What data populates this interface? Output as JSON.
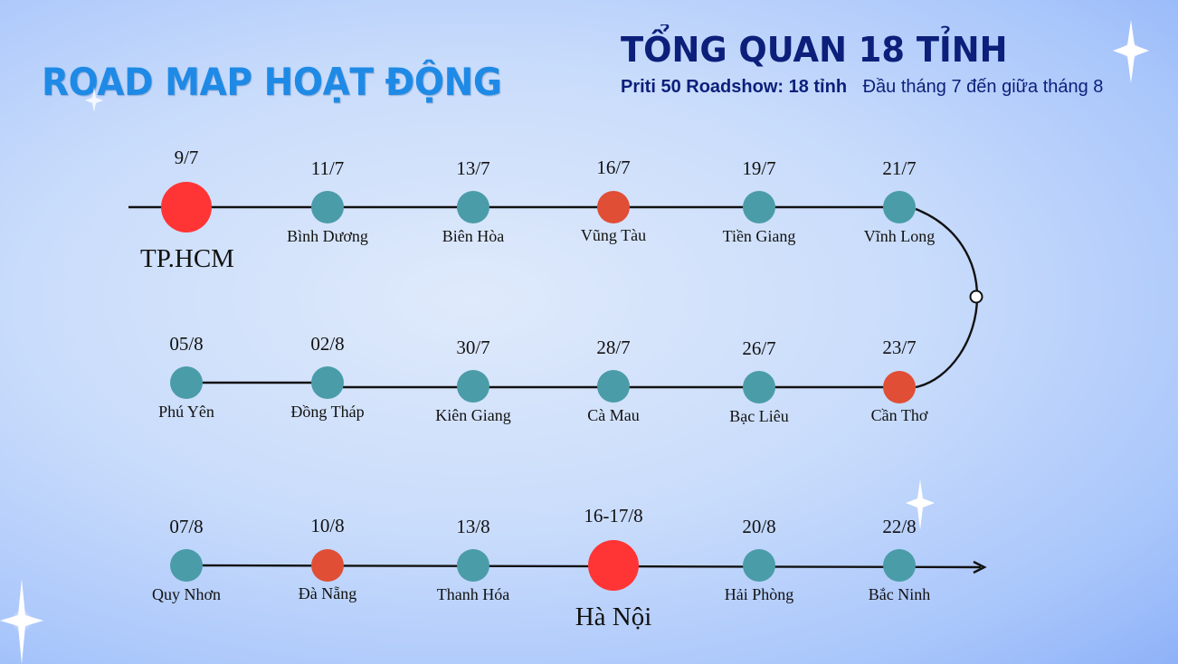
{
  "header": {
    "title": "ROAD MAP HOẠT ĐỘNG",
    "overview_title": "TỔNG QUAN 18 TỈNH",
    "subtitle_left": "Priti 50 Roadshow: 18 tỉnh",
    "subtitle_right": "Đầu tháng 7 đến giữa tháng 8"
  },
  "colors": {
    "teal": "#4a9ca8",
    "orange": "#e04e36",
    "red": "#ff3535",
    "line": "#111111",
    "title_blue": "#1f8ae6",
    "navy": "#0c1f7a"
  },
  "rows": [
    {
      "stops": [
        {
          "date": "9/7",
          "place": "TP.HCM",
          "kind": "major"
        },
        {
          "date": "11/7",
          "place": "Bình Dương",
          "kind": "normal"
        },
        {
          "date": "13/7",
          "place": "Biên Hòa",
          "kind": "normal"
        },
        {
          "date": "16/7",
          "place": "Vũng Tàu",
          "kind": "highlight"
        },
        {
          "date": "19/7",
          "place": "Tiền Giang",
          "kind": "normal"
        },
        {
          "date": "21/7",
          "place": "Vĩnh Long",
          "kind": "normal"
        }
      ]
    },
    {
      "stops": [
        {
          "date": "05/8",
          "place": "Phú Yên",
          "kind": "normal"
        },
        {
          "date": "02/8",
          "place": "Đồng Tháp",
          "kind": "normal"
        },
        {
          "date": "30/7",
          "place": "Kiên Giang",
          "kind": "normal"
        },
        {
          "date": "28/7",
          "place": "Cà Mau",
          "kind": "normal"
        },
        {
          "date": "26/7",
          "place": "Bạc Liêu",
          "kind": "normal"
        },
        {
          "date": "23/7",
          "place": "Cần Thơ",
          "kind": "highlight"
        }
      ]
    },
    {
      "stops": [
        {
          "date": "07/8",
          "place": "Quy Nhơn",
          "kind": "normal"
        },
        {
          "date": "10/8",
          "place": "Đà Nẵng",
          "kind": "highlight"
        },
        {
          "date": "13/8",
          "place": "Thanh Hóa",
          "kind": "normal"
        },
        {
          "date": "16-17/8",
          "place": "Hà Nội",
          "kind": "major"
        },
        {
          "date": "20/8",
          "place": "Hải Phòng",
          "kind": "normal"
        },
        {
          "date": "22/8",
          "place": "Bắc Ninh",
          "kind": "normal"
        }
      ]
    }
  ]
}
